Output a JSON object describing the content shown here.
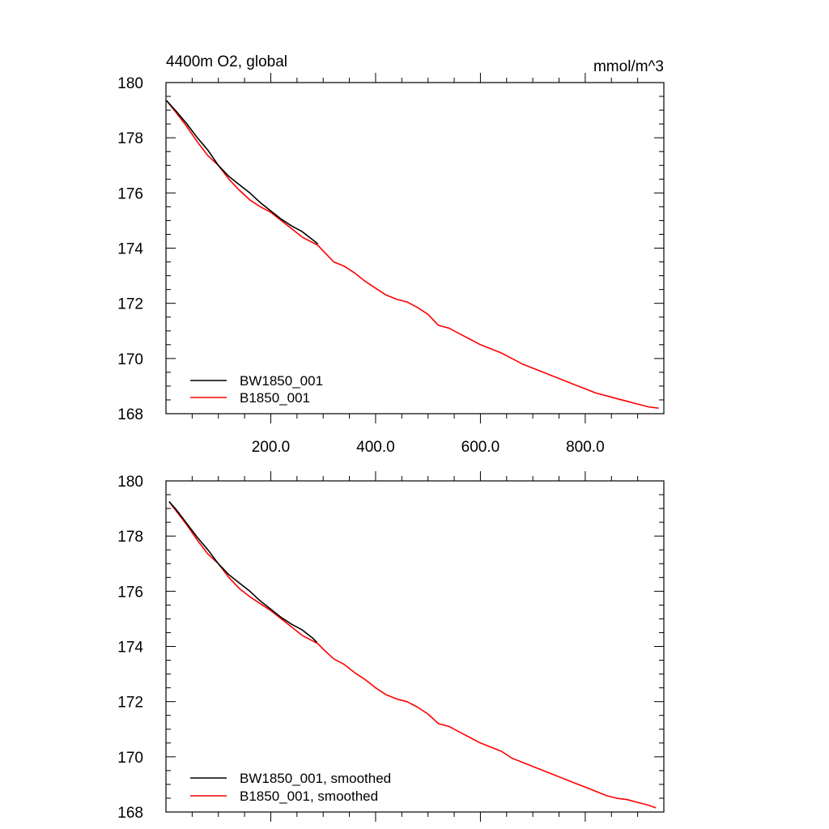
{
  "chart_data": [
    {
      "type": "line",
      "title_left": "4400m O2, global",
      "title_right": "mmol/m^3",
      "xlim": [
        0,
        950
      ],
      "ylim": [
        168,
        180
      ],
      "x_ticks": [
        200,
        400,
        600,
        800
      ],
      "x_tick_labels": [
        "200.0",
        "400.0",
        "600.0",
        "800.0"
      ],
      "y_ticks": [
        168,
        170,
        172,
        174,
        176,
        178,
        180
      ],
      "y_tick_labels": [
        "168",
        "170",
        "172",
        "174",
        "176",
        "178",
        "180"
      ],
      "legend_position": "bottom-left",
      "series": [
        {
          "name": "BW1850_001",
          "color": "#000000",
          "x": [
            1,
            20,
            40,
            60,
            80,
            100,
            120,
            140,
            160,
            180,
            200,
            220,
            240,
            260,
            280,
            290
          ],
          "y": [
            179.35,
            178.95,
            178.5,
            178.0,
            177.55,
            177.0,
            176.6,
            176.3,
            176.0,
            175.65,
            175.35,
            175.05,
            174.8,
            174.6,
            174.3,
            174.15
          ]
        },
        {
          "name": "B1850_001",
          "color": "#ff0000",
          "x": [
            1,
            20,
            40,
            60,
            80,
            100,
            120,
            140,
            160,
            180,
            200,
            220,
            240,
            260,
            280,
            290,
            300,
            320,
            340,
            360,
            380,
            400,
            420,
            440,
            460,
            480,
            500,
            520,
            540,
            560,
            580,
            600,
            620,
            640,
            660,
            680,
            700,
            720,
            740,
            760,
            780,
            800,
            820,
            840,
            860,
            880,
            900,
            920,
            940
          ],
          "y": [
            179.35,
            178.9,
            178.4,
            177.85,
            177.35,
            177.0,
            176.5,
            176.1,
            175.75,
            175.5,
            175.3,
            175.0,
            174.7,
            174.4,
            174.2,
            174.1,
            173.9,
            173.5,
            173.35,
            173.1,
            172.8,
            172.55,
            172.3,
            172.15,
            172.05,
            171.85,
            171.6,
            171.2,
            171.1,
            170.9,
            170.7,
            170.5,
            170.35,
            170.2,
            170.0,
            169.8,
            169.65,
            169.5,
            169.35,
            169.2,
            169.05,
            168.9,
            168.75,
            168.65,
            168.55,
            168.45,
            168.35,
            168.25,
            168.2
          ]
        }
      ]
    },
    {
      "type": "line",
      "xlim": [
        0,
        950
      ],
      "ylim": [
        168,
        180
      ],
      "x_ticks": [
        200,
        400,
        600,
        800
      ],
      "y_ticks": [
        168,
        170,
        172,
        174,
        176,
        178,
        180
      ],
      "y_tick_labels": [
        "168",
        "170",
        "172",
        "174",
        "176",
        "178",
        "180"
      ],
      "legend_position": "bottom-left",
      "series": [
        {
          "name": "BW1850_001, smoothed",
          "color": "#000000",
          "x": [
            6,
            20,
            40,
            60,
            80,
            100,
            120,
            140,
            160,
            180,
            200,
            220,
            240,
            260,
            280,
            288
          ],
          "y": [
            179.25,
            178.95,
            178.45,
            177.95,
            177.5,
            177.0,
            176.6,
            176.3,
            176.0,
            175.65,
            175.35,
            175.05,
            174.8,
            174.6,
            174.3,
            174.15
          ]
        },
        {
          "name": "B1850_001, smoothed",
          "color": "#ff0000",
          "x": [
            6,
            20,
            40,
            60,
            80,
            100,
            120,
            140,
            160,
            180,
            200,
            220,
            240,
            260,
            280,
            290,
            300,
            320,
            340,
            360,
            380,
            400,
            420,
            440,
            460,
            480,
            500,
            520,
            540,
            560,
            580,
            600,
            620,
            640,
            660,
            680,
            700,
            720,
            740,
            760,
            780,
            800,
            820,
            840,
            860,
            880,
            900,
            920,
            935
          ],
          "y": [
            179.25,
            178.9,
            178.4,
            177.85,
            177.35,
            177.0,
            176.5,
            176.1,
            175.8,
            175.55,
            175.3,
            175.0,
            174.7,
            174.4,
            174.2,
            174.1,
            173.9,
            173.55,
            173.35,
            173.05,
            172.8,
            172.5,
            172.25,
            172.1,
            172.0,
            171.8,
            171.55,
            171.2,
            171.1,
            170.9,
            170.7,
            170.5,
            170.35,
            170.2,
            169.95,
            169.8,
            169.65,
            169.5,
            169.35,
            169.2,
            169.05,
            168.9,
            168.75,
            168.6,
            168.5,
            168.45,
            168.35,
            168.25,
            168.15
          ]
        }
      ]
    }
  ]
}
